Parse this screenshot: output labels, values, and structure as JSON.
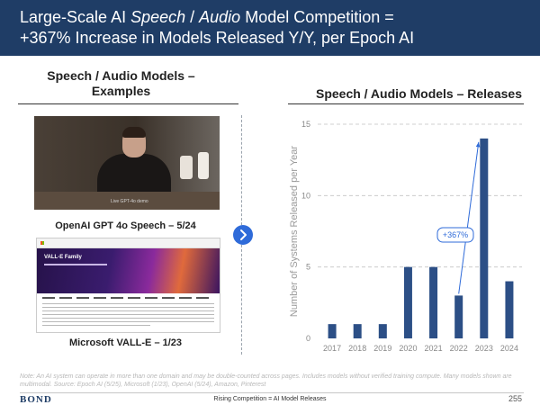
{
  "header": {
    "title_prefix": "Large-Scale AI ",
    "title_speech": "Speech",
    "title_slash": " / ",
    "title_audio": "Audio",
    "title_suffix": " Model Competition =",
    "subtitle": "+367% Increase in Models Released Y/Y, per Epoch AI"
  },
  "left_panel": {
    "title_line1": "Speech / Audio Models –",
    "title_line2": "Examples",
    "example1_caption": "OpenAI GPT 4o Speech – 5/24",
    "example1_video_caption": "Live GPT-4o demo",
    "example2_caption": "Microsoft VALL-E – 1/23",
    "example2_hero_title": "VALL-E Family"
  },
  "chart_data": {
    "type": "bar",
    "title": "Speech / Audio Models – Releases",
    "ylabel": "Number of Systems Released per Year",
    "xlabel": "",
    "categories": [
      "2017",
      "2018",
      "2019",
      "2020",
      "2021",
      "2022",
      "2023",
      "2024"
    ],
    "values": [
      1,
      1,
      1,
      5,
      5,
      3,
      14,
      4
    ],
    "ylim": [
      0,
      15
    ],
    "yticks": [
      0,
      5,
      10,
      15
    ],
    "grid": true,
    "bar_color": "#2c4f86",
    "annotation": {
      "text": "+367%",
      "from": "2022",
      "to": "2023"
    }
  },
  "footer": {
    "note": "Note: An AI system can operate in more than one domain and may be double-counted across pages. Includes models without verified training compute. Many models shown are multimodal. Source: Epoch AI (5/25), Microsoft (1/23), OpenAI (5/24), Amazon, Pinterest",
    "brand": "BOND",
    "center_text": "Rising Competition = AI Model Releases",
    "page_number": "255"
  },
  "colors": {
    "header_bg": "#1f3d66",
    "bar": "#2c4f86",
    "accent_button": "#2f6bd9"
  }
}
